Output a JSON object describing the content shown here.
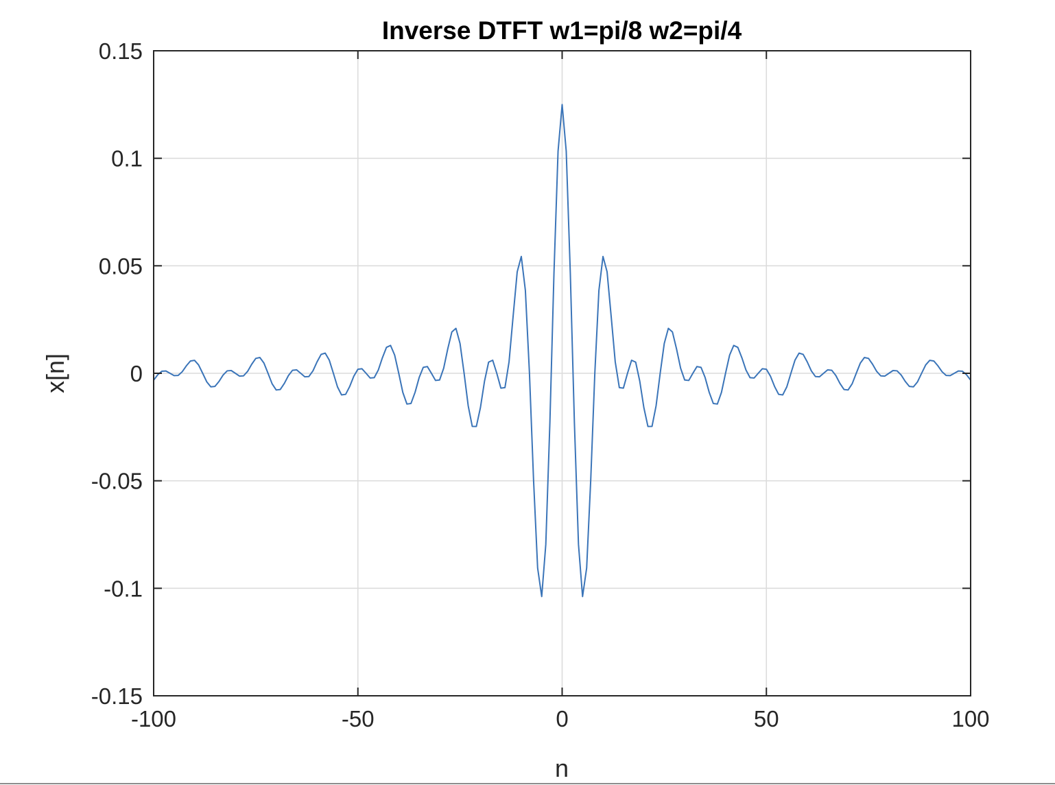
{
  "chart_data": {
    "type": "line",
    "title": "Inverse DTFT w1=pi/8 w2=pi/4",
    "xlabel": "n",
    "ylabel": "x[n]",
    "xlim": [
      -100,
      100
    ],
    "ylim": [
      -0.15,
      0.15
    ],
    "xticks": [
      -100,
      -50,
      0,
      50,
      100
    ],
    "xtick_labels": [
      "-100",
      "-50",
      "0",
      "50",
      "100"
    ],
    "yticks": [
      -0.15,
      -0.1,
      -0.05,
      0,
      0.05,
      0.1,
      0.15
    ],
    "ytick_labels": [
      "-0.15",
      "-0.1",
      "-0.05",
      "0",
      "0.05",
      "0.1",
      "0.15"
    ],
    "grid": true,
    "series": [
      {
        "color": "#3a74b8",
        "n_range": [
          -100,
          100
        ],
        "formula": "x[n] = (sin(pi*n/4) - sin(pi*n/8)) / (pi*n), x[0] = 0.125"
      }
    ]
  }
}
